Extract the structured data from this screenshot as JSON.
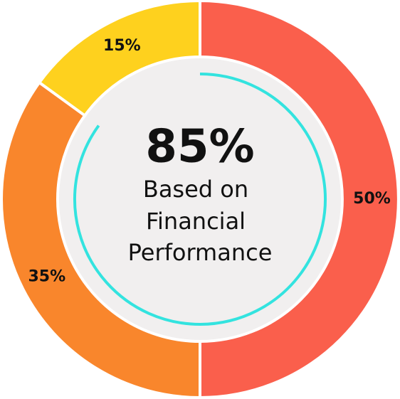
{
  "chart_data": {
    "type": "donut",
    "values": [
      50,
      35,
      15
    ],
    "value_labels": [
      "50%",
      "35%",
      "15%"
    ],
    "colors": [
      "#fa5f4c",
      "#f9862c",
      "#fed11e"
    ],
    "center": {
      "value": 85,
      "label": "85%"
    },
    "center_color": "#33e3df",
    "center_text": [
      "Based on",
      "Financial",
      "Performance"
    ]
  }
}
